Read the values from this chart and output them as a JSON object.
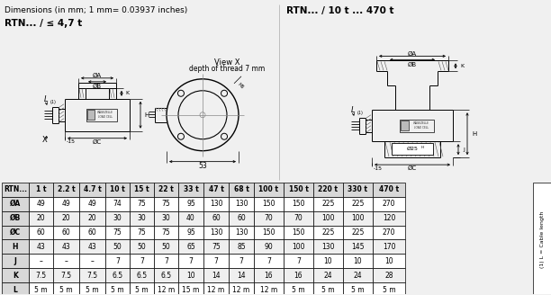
{
  "title_left": "Dimensions (in mm; 1 mm= 0.03937 inches)",
  "title_right": "RTN... / 10 t ... 470 t",
  "subtitle_left": "RTN... / ≤ 4,7 t",
  "view_x_label1": "View X",
  "view_x_label2": "depth of thread 7 mm",
  "bg_color": "#f0f0f0",
  "table_headers": [
    "RTN...",
    "1 t",
    "2.2 t",
    "4.7 t",
    "10 t",
    "15 t",
    "22 t",
    "33 t",
    "47 t",
    "68 t",
    "100 t",
    "150 t",
    "220 t",
    "330 t",
    "470 t"
  ],
  "table_rows": [
    [
      "ØA",
      "49",
      "49",
      "49",
      "74",
      "75",
      "75",
      "95",
      "130",
      "130",
      "150",
      "150",
      "225",
      "225",
      "270"
    ],
    [
      "ØB",
      "20",
      "20",
      "20",
      "30",
      "30",
      "30",
      "40",
      "60",
      "60",
      "70",
      "70",
      "100",
      "100",
      "120"
    ],
    [
      "ØC",
      "60",
      "60",
      "60",
      "75",
      "75",
      "75",
      "95",
      "130",
      "130",
      "150",
      "150",
      "225",
      "225",
      "270"
    ],
    [
      "H",
      "43",
      "43",
      "43",
      "50",
      "50",
      "50",
      "65",
      "75",
      "85",
      "90",
      "100",
      "130",
      "145",
      "170"
    ],
    [
      "J",
      "–",
      "–",
      "–",
      "7",
      "7",
      "7",
      "7",
      "7",
      "7",
      "7",
      "7",
      "10",
      "10",
      "10"
    ],
    [
      "K",
      "7.5",
      "7.5",
      "7.5",
      "6.5",
      "6.5",
      "6.5",
      "10",
      "14",
      "14",
      "16",
      "16",
      "24",
      "24",
      "28"
    ],
    [
      "L",
      "5 m",
      "5 m",
      "5 m",
      "5 m",
      "5 m",
      "12 m",
      "15 m",
      "12 m",
      "12 m",
      "12 m",
      "5 m",
      "5 m",
      "5 m",
      "5 m"
    ]
  ],
  "side_note": "(1) L = Cable length",
  "lc": "#000000",
  "gray": "#888888",
  "hatch_color": "#555555",
  "header_bg": "#d8d8d8",
  "row_bg1": "#ffffff",
  "row_bg2": "#efefef"
}
